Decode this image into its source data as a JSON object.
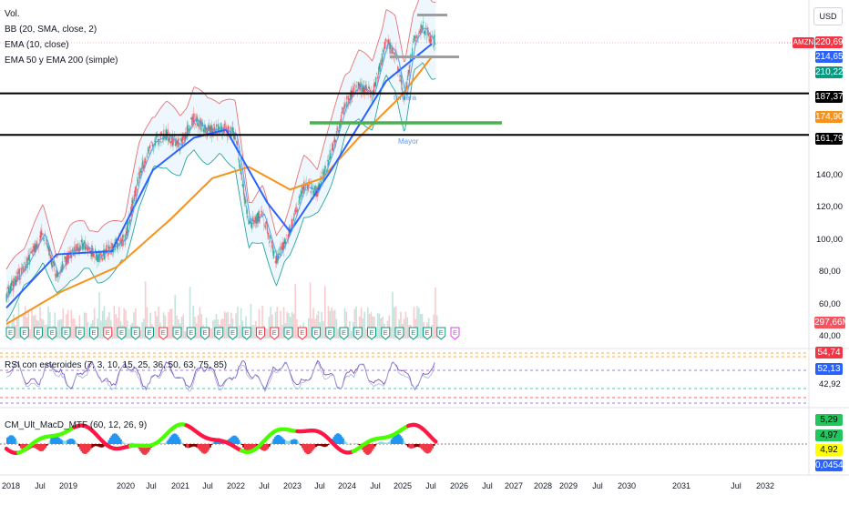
{
  "chart_data": [
    {
      "type": "candlestick",
      "legend": [
        "Vol.",
        "BB (20, SMA, close, 2)",
        "EMA (10, close)",
        "EMA 50 y EMA 200 (simple)"
      ],
      "currency": "USD",
      "ticker": "AMZN",
      "price_axis_ticks": [
        "140,00",
        "120,00",
        "100,00",
        "80,00",
        "60,00",
        "40,00"
      ],
      "price_tags": [
        {
          "text": "220,69",
          "color": "#f23645"
        },
        {
          "text": "214,65",
          "color": "#2962ff"
        },
        {
          "text": "210,22",
          "color": "#089981"
        },
        {
          "text": "187,37",
          "color": "#000000"
        },
        {
          "text": "174,90",
          "color": "#f7931a"
        },
        {
          "text": "161,79",
          "color": "#000000"
        },
        {
          "text": "297,66M",
          "color": "#f7525f"
        }
      ],
      "annotations": [
        "tercera",
        "Mayor"
      ],
      "horizontal_levels": [
        187.37,
        161.79
      ],
      "support_level": 174.9,
      "series_close": [
        [
          "2017-12",
          58
        ],
        [
          "2018-03",
          72
        ],
        [
          "2018-06",
          85
        ],
        [
          "2018-09",
          101
        ],
        [
          "2018-12",
          75
        ],
        [
          "2019-03",
          89
        ],
        [
          "2019-06",
          94
        ],
        [
          "2019-09",
          86
        ],
        [
          "2019-12",
          92
        ],
        [
          "2020-03",
          98
        ],
        [
          "2020-06",
          137
        ],
        [
          "2020-09",
          157
        ],
        [
          "2020-12",
          162
        ],
        [
          "2021-03",
          155
        ],
        [
          "2021-06",
          172
        ],
        [
          "2021-09",
          164
        ],
        [
          "2021-12",
          166
        ],
        [
          "2022-03",
          162
        ],
        [
          "2022-06",
          106
        ],
        [
          "2022-09",
          113
        ],
        [
          "2022-12",
          84
        ],
        [
          "2023-03",
          103
        ],
        [
          "2023-06",
          130
        ],
        [
          "2023-09",
          127
        ],
        [
          "2023-12",
          151
        ],
        [
          "2024-03",
          180
        ],
        [
          "2024-06",
          193
        ],
        [
          "2024-09",
          186
        ],
        [
          "2024-12",
          219
        ],
        [
          "2025-02",
          212
        ],
        [
          "2025-04",
          184
        ],
        [
          "2025-06",
          219
        ],
        [
          "2025-08",
          229
        ],
        [
          "2025-10",
          220
        ]
      ],
      "ema200": [
        [
          "2018-01",
          45
        ],
        [
          "2019-01",
          65
        ],
        [
          "2020-01",
          80
        ],
        [
          "2021-01",
          110
        ],
        [
          "2021-10",
          135
        ],
        [
          "2022-06",
          142
        ],
        [
          "2023-03",
          128
        ],
        [
          "2023-10",
          135
        ],
        [
          "2024-06",
          160
        ],
        [
          "2025-03",
          185
        ],
        [
          "2025-10",
          210
        ]
      ],
      "ema50": [
        [
          "2018-01",
          55
        ],
        [
          "2018-12",
          88
        ],
        [
          "2019-12",
          90
        ],
        [
          "2020-09",
          140
        ],
        [
          "2021-06",
          160
        ],
        [
          "2022-01",
          165
        ],
        [
          "2022-10",
          120
        ],
        [
          "2023-03",
          102
        ],
        [
          "2023-12",
          140
        ],
        [
          "2024-12",
          195
        ],
        [
          "2025-10",
          218
        ]
      ],
      "earnings_markers": {
        "count": 33,
        "letter": "E"
      }
    },
    {
      "type": "line",
      "title": "RSI con esteroides (7, 3, 10, 15, 25, 36, 50, 63, 75, 85)",
      "value_tags": [
        {
          "text": "54,74",
          "color": "#f23645"
        },
        {
          "text": "52,13",
          "color": "#2962ff"
        },
        {
          "text": "42,92",
          "color": "none"
        }
      ]
    },
    {
      "type": "bar",
      "title": "CM_Ult_MacD_MTF (60, 12, 26, 9)",
      "value_tags": [
        {
          "text": "5,29",
          "color": "#22c55e"
        },
        {
          "text": "4,97",
          "color": "#22c55e"
        },
        {
          "text": "4,92",
          "color": "#ffff00"
        },
        {
          "text": "0,0454",
          "color": "#2962ff"
        }
      ]
    }
  ],
  "time_axis": [
    "2018",
    "Jul",
    "2019",
    "2020",
    "Jul",
    "2021",
    "Jul",
    "2022",
    "Jul",
    "2023",
    "Jul",
    "2024",
    "Jul",
    "2025",
    "Jul",
    "2026",
    "Jul",
    "2027",
    "2028",
    "2029",
    "Jul",
    "2030",
    "2031",
    "Jul",
    "2032"
  ]
}
